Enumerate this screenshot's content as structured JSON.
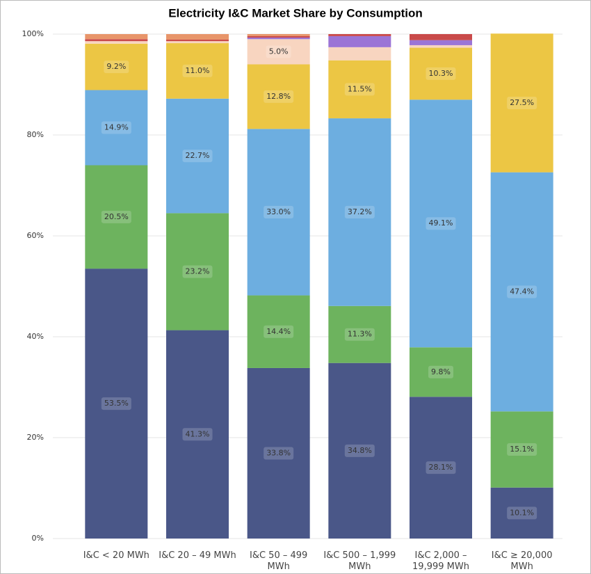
{
  "chart_data": {
    "type": "stacked_bar",
    "title": "Electricity I&C Market Share by Consumption",
    "categories": [
      "I&C < 20 MWh",
      "I&C 20 – 49 MWh",
      "I&C 50 – 499 MWh",
      "I&C 500 – 1,999 MWh",
      "I&C 2,000 – 19,999 MWh",
      "I&C ≥ 20,000 MWh"
    ],
    "series": [
      {
        "color": "#4a5788",
        "values": [
          53.5,
          41.3,
          33.8,
          34.8,
          28.1,
          10.1
        ],
        "value_labels": [
          "53.5%",
          "41.3%",
          "33.8%",
          "34.8%",
          "28.1%",
          "10.1%"
        ]
      },
      {
        "color": "#6db35e",
        "values": [
          20.5,
          23.2,
          14.4,
          11.3,
          9.8,
          15.1
        ],
        "value_labels": [
          "20.5%",
          "23.2%",
          "14.4%",
          "11.3%",
          "9.8%",
          "15.1%"
        ]
      },
      {
        "color": "#6daee0",
        "values": [
          14.9,
          22.7,
          33.0,
          37.2,
          49.1,
          47.4
        ],
        "value_labels": [
          "14.9%",
          "22.7%",
          "33.0%",
          "37.2%",
          "49.1%",
          "47.4%"
        ]
      },
      {
        "color": "#ecc644",
        "values": [
          9.2,
          11.0,
          12.8,
          11.5,
          10.3,
          27.5
        ],
        "value_labels": [
          "9.2%",
          "11.0%",
          "12.8%",
          "11.5%",
          "10.3%",
          "27.5%"
        ]
      },
      {
        "color": "#f8d5c0",
        "values": [
          0.5,
          0.4,
          5.0,
          2.6,
          0.5,
          0
        ],
        "value_labels": [
          null,
          null,
          "5.0%",
          null,
          null,
          null
        ]
      },
      {
        "color": "#9b74d6",
        "values": [
          0,
          0,
          0.3,
          2.2,
          1.0,
          0
        ]
      },
      {
        "color": "#c94a4a",
        "values": [
          0.4,
          0.3,
          0.3,
          0.4,
          1.2,
          0
        ]
      },
      {
        "color": "#e8956a",
        "values": [
          1.0,
          1.1,
          0.4,
          0,
          0,
          0
        ]
      }
    ],
    "ylim": [
      0,
      100
    ],
    "yticks": [
      {
        "value": 0,
        "label": "0%"
      },
      {
        "value": 20,
        "label": "20%"
      },
      {
        "value": 40,
        "label": "40%"
      },
      {
        "value": 60,
        "label": "60%"
      },
      {
        "value": 80,
        "label": "80%"
      },
      {
        "value": 100,
        "label": "100%"
      }
    ],
    "grid": true
  }
}
